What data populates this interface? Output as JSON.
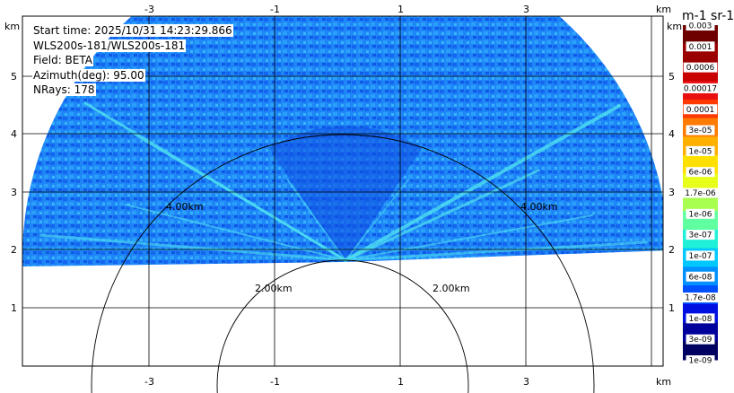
{
  "info": {
    "start_time": "Start time: 2025/10/31 14:23:29.866",
    "instrument": "WLS200s-181/WLS200s-181",
    "field": "Field: BETA",
    "azimuth": "Azimuth(deg): 95.00",
    "nrays": "NRays: 178"
  },
  "axes": {
    "x_ticks": [
      "-3",
      "-1",
      "1",
      "3"
    ],
    "y_ticks": [
      "5",
      "4",
      "3",
      "2",
      "1"
    ],
    "unit": "km"
  },
  "range_rings": {
    "inner": "2.00km",
    "outer": "4.00km"
  },
  "colorbar": {
    "title": "m-1 sr-1",
    "labels": [
      "0.003",
      "0.001",
      "0.0006",
      "0.00017",
      "0.0001",
      "3e-05",
      "1e-05",
      "6e-06",
      "1.7e-06",
      "1e-06",
      "3e-07",
      "1e-07",
      "6e-08",
      "1.7e-08",
      "1e-08",
      "3e-09",
      "1e-09"
    ],
    "colors": [
      "#6e0000",
      "#9a0000",
      "#c80000",
      "#e81010",
      "#ff3a00",
      "#ff7a00",
      "#ffb000",
      "#ffe000",
      "#e8ff1a",
      "#a8ff50",
      "#60ffa0",
      "#20f0d8",
      "#00c8ff",
      "#0090ff",
      "#0050ff",
      "#0010e0",
      "#00009a",
      "#000060"
    ]
  },
  "scan": {
    "background": "#1a7cf5",
    "beam_color": "#3fd6f0",
    "speckle_dark": "#0c3fd8"
  }
}
